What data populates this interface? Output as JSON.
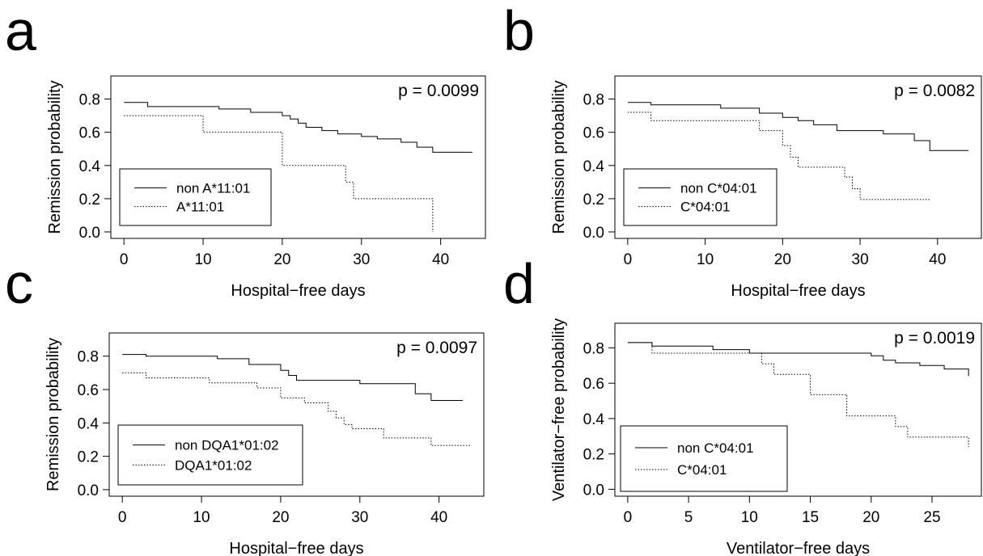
{
  "chart_data": [
    {
      "type": "line",
      "panel_label": "a",
      "xlabel": "Hospital−free days",
      "ylabel": "Remission probability",
      "xlim": [
        0,
        44
      ],
      "ylim": [
        0,
        0.9
      ],
      "xticks": [
        "0",
        "10",
        "20",
        "30",
        "40"
      ],
      "yticks": [
        "0.0",
        "0.2",
        "0.4",
        "0.6",
        "0.8"
      ],
      "annotation": "p = 0.0099",
      "legend_position": "bottom-left",
      "series": [
        {
          "name": "non A*11:01",
          "style": "solid",
          "x": [
            0,
            3,
            12,
            16,
            20,
            21,
            22,
            23,
            25,
            27,
            30,
            32,
            35,
            37,
            39,
            44
          ],
          "y": [
            0.78,
            0.755,
            0.74,
            0.72,
            0.7,
            0.68,
            0.655,
            0.63,
            0.61,
            0.59,
            0.575,
            0.56,
            0.54,
            0.51,
            0.48,
            0.48
          ]
        },
        {
          "name": "A*11:01",
          "style": "dotted",
          "x": [
            0,
            10,
            20,
            28,
            29,
            39,
            39
          ],
          "y": [
            0.7,
            0.6,
            0.4,
            0.3,
            0.2,
            0.2,
            0.0
          ]
        }
      ]
    },
    {
      "type": "line",
      "panel_label": "b",
      "xlabel": "Hospital−free days",
      "ylabel": "Remission probability",
      "xlim": [
        0,
        44
      ],
      "ylim": [
        0,
        0.9
      ],
      "xticks": [
        "0",
        "10",
        "20",
        "30",
        "40"
      ],
      "yticks": [
        "0.0",
        "0.2",
        "0.4",
        "0.6",
        "0.8"
      ],
      "annotation": "p = 0.0082",
      "legend_position": "bottom-left",
      "series": [
        {
          "name": "non C*04:01",
          "style": "solid",
          "x": [
            0,
            3,
            12,
            17,
            20,
            22,
            24,
            27,
            33,
            37,
            39,
            44
          ],
          "y": [
            0.78,
            0.765,
            0.745,
            0.715,
            0.69,
            0.67,
            0.645,
            0.61,
            0.59,
            0.55,
            0.49,
            0.49
          ]
        },
        {
          "name": "C*04:01",
          "style": "dotted",
          "x": [
            0,
            3,
            17,
            20,
            21,
            22,
            28,
            29,
            30,
            39
          ],
          "y": [
            0.72,
            0.67,
            0.61,
            0.52,
            0.45,
            0.39,
            0.33,
            0.26,
            0.195,
            0.195
          ]
        }
      ]
    },
    {
      "type": "line",
      "panel_label": "c",
      "xlabel": "Hospital−free days",
      "ylabel": "Remission probability",
      "xlim": [
        0,
        44
      ],
      "ylim": [
        0,
        0.9
      ],
      "xticks": [
        "0",
        "10",
        "20",
        "30",
        "40"
      ],
      "yticks": [
        "0.0",
        "0.2",
        "0.4",
        "0.6",
        "0.8"
      ],
      "annotation": "p = 0.0097",
      "legend_position": "bottom-left",
      "series": [
        {
          "name": "non DQA1*01:02",
          "style": "solid",
          "x": [
            0,
            3,
            12,
            16,
            20,
            21,
            22,
            30,
            37,
            39,
            43
          ],
          "y": [
            0.81,
            0.8,
            0.785,
            0.75,
            0.715,
            0.685,
            0.655,
            0.635,
            0.575,
            0.535,
            0.535
          ]
        },
        {
          "name": "DQA1*01:02",
          "style": "dotted",
          "x": [
            0,
            3,
            11,
            17,
            20,
            23,
            26,
            27,
            28,
            29,
            33,
            39,
            44
          ],
          "y": [
            0.7,
            0.67,
            0.64,
            0.61,
            0.55,
            0.52,
            0.47,
            0.43,
            0.39,
            0.365,
            0.31,
            0.265,
            0.265
          ]
        }
      ]
    },
    {
      "type": "line",
      "panel_label": "d",
      "xlabel": "Ventilator−free days",
      "ylabel": "Ventilator−free probability",
      "xlim": [
        0,
        28
      ],
      "ylim": [
        0,
        0.9
      ],
      "xticks": [
        "0",
        "5",
        "10",
        "15",
        "20",
        "25"
      ],
      "yticks": [
        "0.0",
        "0.2",
        "0.4",
        "0.6",
        "0.8"
      ],
      "annotation": "p = 0.0019",
      "legend_position": "bottom-left",
      "series": [
        {
          "name": "non C*04:01",
          "style": "solid",
          "x": [
            0,
            2,
            7,
            10,
            20,
            21,
            22,
            24,
            26,
            28,
            28
          ],
          "y": [
            0.83,
            0.81,
            0.79,
            0.77,
            0.755,
            0.73,
            0.715,
            0.7,
            0.68,
            0.66,
            0.64
          ]
        },
        {
          "name": "C*04:01",
          "style": "dotted",
          "x": [
            0,
            2,
            10,
            11,
            12,
            15,
            18,
            22,
            23,
            28,
            28
          ],
          "y": [
            0.83,
            0.77,
            0.77,
            0.71,
            0.65,
            0.535,
            0.415,
            0.355,
            0.295,
            0.295,
            0.24
          ]
        }
      ]
    }
  ]
}
